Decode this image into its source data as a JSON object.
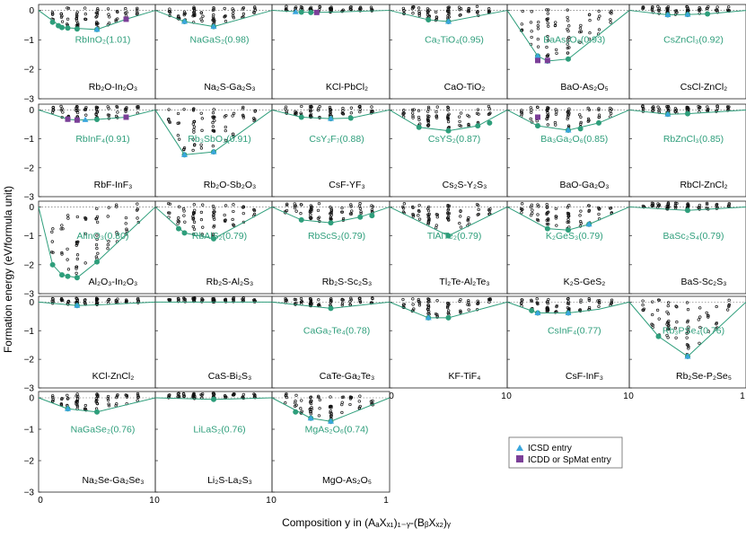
{
  "figure": {
    "ylabel": "Formation energy (eV/formula unit)",
    "xlabel": "Composition y in (AₐXₓ₁)₁₋ᵧ-(BᵦXₓ₂)ᵧ",
    "ytick_labels": [
      "0",
      "−1",
      "−2",
      "−3"
    ],
    "xtick_labels": [
      "0",
      "1"
    ],
    "legend": [
      {
        "label": "ICSD entry",
        "marker": "triangle",
        "color": "#3aa6dd"
      },
      {
        "label": "ICDD or SpMat entry",
        "marker": "square",
        "color": "#7b3f98"
      }
    ],
    "colors": {
      "hull": "#2e9e7b",
      "stable": "#2e9e7b",
      "icsd": "#3aa6dd",
      "icdd": "#7b3f98",
      "points": "#111111"
    }
  },
  "chart_data": [
    {
      "type": "scatter",
      "system": "Rb2O-In2O3",
      "label": "RbInO₂(1.01)",
      "ylim": [
        -3,
        0.2
      ],
      "xlim": [
        0,
        1
      ],
      "hull": [
        [
          0,
          0
        ],
        [
          0.2,
          -0.58
        ],
        [
          0.5,
          -0.65
        ],
        [
          0.75,
          -0.3
        ],
        [
          1,
          0
        ]
      ],
      "stable": [
        [
          0.12,
          -0.4
        ],
        [
          0.17,
          -0.52
        ],
        [
          0.2,
          -0.58
        ],
        [
          0.25,
          -0.6
        ],
        [
          0.33,
          -0.63
        ],
        [
          0.5,
          -0.65
        ]
      ],
      "icsd": [
        [
          0.5,
          -0.65
        ]
      ],
      "icdd": [
        [
          0.75,
          -0.3
        ]
      ]
    },
    {
      "type": "scatter",
      "system": "Na2S-Ga2S3",
      "label": "NaGaS₂(0.98)",
      "ylim": [
        -3,
        0.2
      ],
      "xlim": [
        0,
        1
      ],
      "hull": [
        [
          0,
          0
        ],
        [
          0.25,
          -0.38
        ],
        [
          0.5,
          -0.55
        ],
        [
          1,
          0
        ]
      ],
      "stable": [
        [
          0.25,
          -0.38
        ],
        [
          0.5,
          -0.55
        ]
      ],
      "icsd": [
        [
          0.25,
          -0.38
        ],
        [
          0.5,
          -0.55
        ]
      ],
      "icdd": []
    },
    {
      "type": "scatter",
      "system": "KCl-PbCl2",
      "label": "",
      "ylim": [
        -3,
        0.2
      ],
      "xlim": [
        0,
        1
      ],
      "hull": [
        [
          0,
          0
        ],
        [
          0.33,
          -0.07
        ],
        [
          0.5,
          -0.06
        ],
        [
          1,
          0
        ]
      ],
      "stable": [
        [
          0.25,
          -0.06
        ],
        [
          0.33,
          -0.07
        ]
      ],
      "icsd": [
        [
          0.2,
          -0.05
        ]
      ],
      "icdd": [
        [
          0.38,
          -0.07
        ]
      ]
    },
    {
      "type": "scatter",
      "system": "CaO-TiO2",
      "label": "Ca₂TiO₄(0.95)",
      "ylim": [
        -3,
        0.2
      ],
      "xlim": [
        0,
        1
      ],
      "hull": [
        [
          0,
          0
        ],
        [
          0.33,
          -0.32
        ],
        [
          0.5,
          -0.38
        ],
        [
          1,
          0
        ]
      ],
      "stable": [
        [
          0.33,
          -0.32
        ],
        [
          0.5,
          -0.38
        ]
      ],
      "icsd": [
        [
          0.5,
          -0.38
        ]
      ],
      "icdd": []
    },
    {
      "type": "scatter",
      "system": "BaO-As2O5",
      "label": "BaAs₂O₆(0.93)",
      "ylim": [
        -3,
        0.2
      ],
      "xlim": [
        0,
        1
      ],
      "hull": [
        [
          0,
          0
        ],
        [
          0.25,
          -1.55
        ],
        [
          0.33,
          -1.72
        ],
        [
          0.5,
          -1.65
        ],
        [
          1,
          0
        ]
      ],
      "stable": [
        [
          0.25,
          -1.55
        ],
        [
          0.33,
          -1.72
        ],
        [
          0.5,
          -1.65
        ]
      ],
      "icsd": [
        [
          0.25,
          -1.55
        ],
        [
          0.33,
          -1.72
        ]
      ],
      "icdd": [
        [
          0.25,
          -1.7
        ],
        [
          0.33,
          -1.7
        ]
      ]
    },
    {
      "type": "scatter",
      "system": "CsCl-ZnCl2",
      "label": "CsZnCl₃(0.92)",
      "ylim": [
        -3,
        0.2
      ],
      "xlim": [
        0,
        1
      ],
      "hull": [
        [
          0,
          0
        ],
        [
          0.33,
          -0.15
        ],
        [
          0.5,
          -0.14
        ],
        [
          0.67,
          -0.12
        ],
        [
          1,
          0
        ]
      ],
      "stable": [
        [
          0.33,
          -0.15
        ],
        [
          0.5,
          -0.14
        ],
        [
          0.67,
          -0.12
        ]
      ],
      "icsd": [
        [
          0.33,
          -0.15
        ],
        [
          0.5,
          -0.14
        ]
      ],
      "icdd": []
    },
    {
      "type": "scatter",
      "system": "RbF-InF3",
      "label": "RbInF₄(0.91)",
      "ylim": [
        -3,
        0.2
      ],
      "xlim": [
        0,
        1
      ],
      "hull": [
        [
          0,
          0
        ],
        [
          0.25,
          -0.32
        ],
        [
          0.33,
          -0.35
        ],
        [
          0.5,
          -0.33
        ],
        [
          0.75,
          -0.25
        ],
        [
          1,
          0
        ]
      ],
      "stable": [
        [
          0.25,
          -0.32
        ],
        [
          0.33,
          -0.35
        ],
        [
          0.5,
          -0.33
        ]
      ],
      "icsd": [
        [
          0.4,
          -0.34
        ]
      ],
      "icdd": [
        [
          0.25,
          -0.32
        ],
        [
          0.33,
          -0.35
        ],
        [
          0.75,
          -0.25
        ]
      ]
    },
    {
      "type": "scatter",
      "system": "Rb2O-Sb2O3",
      "label": "Rb₃SbO₃(0.91)",
      "ylim": [
        -3,
        0.2
      ],
      "xlim": [
        0,
        1
      ],
      "hull": [
        [
          0,
          0
        ],
        [
          0.25,
          -1.55
        ],
        [
          0.5,
          -1.45
        ],
        [
          1,
          0
        ]
      ],
      "stable": [
        [
          0.25,
          -1.55
        ],
        [
          0.5,
          -1.45
        ]
      ],
      "icsd": [
        [
          0.25,
          -1.55
        ],
        [
          0.5,
          -1.45
        ]
      ],
      "icdd": []
    },
    {
      "type": "scatter",
      "system": "CsF-YF3",
      "label": "CsY₂F₇(0.88)",
      "ylim": [
        -3,
        0.2
      ],
      "xlim": [
        0,
        1
      ],
      "hull": [
        [
          0,
          0
        ],
        [
          0.25,
          -0.25
        ],
        [
          0.5,
          -0.3
        ],
        [
          0.67,
          -0.28
        ],
        [
          1,
          0
        ]
      ],
      "stable": [
        [
          0.25,
          -0.25
        ],
        [
          0.5,
          -0.3
        ],
        [
          0.67,
          -0.28
        ]
      ],
      "icsd": [
        [
          0.5,
          -0.3
        ]
      ],
      "icdd": []
    },
    {
      "type": "scatter",
      "system": "Cs2S-Y2S3",
      "label": "CsYS₂(0.87)",
      "ylim": [
        -3,
        0.2
      ],
      "xlim": [
        0,
        1
      ],
      "hull": [
        [
          0,
          0
        ],
        [
          0.25,
          -0.6
        ],
        [
          0.5,
          -0.72
        ],
        [
          0.75,
          -0.55
        ],
        [
          1,
          0
        ]
      ],
      "stable": [
        [
          0.25,
          -0.6
        ],
        [
          0.5,
          -0.72
        ],
        [
          0.75,
          -0.55
        ],
        [
          0.85,
          -0.45
        ]
      ],
      "icsd": [],
      "icdd": []
    },
    {
      "type": "scatter",
      "system": "BaO-Ga2O3",
      "label": "Ba₃Ga₂O₆(0.85)",
      "ylim": [
        -3,
        0.2
      ],
      "xlim": [
        0,
        1
      ],
      "hull": [
        [
          0,
          0
        ],
        [
          0.25,
          -0.55
        ],
        [
          0.5,
          -0.7
        ],
        [
          0.75,
          -0.45
        ],
        [
          1,
          0
        ]
      ],
      "stable": [
        [
          0.25,
          -0.55
        ],
        [
          0.5,
          -0.7
        ],
        [
          0.6,
          -0.65
        ],
        [
          0.75,
          -0.45
        ]
      ],
      "icsd": [
        [
          0.5,
          -0.7
        ]
      ],
      "icdd": [
        [
          0.25,
          -0.25
        ]
      ]
    },
    {
      "type": "scatter",
      "system": "RbCl-ZnCl2",
      "label": "RbZnCl₃(0.85)",
      "ylim": [
        -3,
        0.2
      ],
      "xlim": [
        0,
        1
      ],
      "hull": [
        [
          0,
          0
        ],
        [
          0.33,
          -0.15
        ],
        [
          0.5,
          -0.13
        ],
        [
          1,
          0
        ]
      ],
      "stable": [
        [
          0.33,
          -0.15
        ],
        [
          0.5,
          -0.13
        ]
      ],
      "icsd": [
        [
          0.33,
          -0.15
        ]
      ],
      "icdd": []
    },
    {
      "type": "scatter",
      "system": "Al2O3-In2O3",
      "label": "AlInO₃(0.80)",
      "ylim": [
        -3,
        0.2
      ],
      "xlim": [
        0,
        1
      ],
      "hull": [
        [
          0,
          0
        ],
        [
          0.12,
          -2.0
        ],
        [
          0.2,
          -2.35
        ],
        [
          0.33,
          -2.45
        ],
        [
          0.5,
          -1.9
        ],
        [
          1,
          0
        ]
      ],
      "stable": [
        [
          0.12,
          -2.0
        ],
        [
          0.2,
          -2.35
        ],
        [
          0.25,
          -2.4
        ],
        [
          0.33,
          -2.45
        ],
        [
          0.5,
          -1.9
        ]
      ],
      "icsd": [],
      "icdd": []
    },
    {
      "type": "scatter",
      "system": "Rb2S-Al2S3",
      "label": "RbAlS₂(0.79)",
      "ylim": [
        -3,
        0.2
      ],
      "xlim": [
        0,
        1
      ],
      "hull": [
        [
          0,
          0
        ],
        [
          0.25,
          -0.9
        ],
        [
          0.5,
          -1.1
        ],
        [
          1,
          0
        ]
      ],
      "stable": [
        [
          0.2,
          -0.75
        ],
        [
          0.25,
          -0.9
        ],
        [
          0.5,
          -1.1
        ]
      ],
      "icsd": [],
      "icdd": []
    },
    {
      "type": "scatter",
      "system": "Rb2S-Sc2S3",
      "label": "RbScS₂(0.79)",
      "ylim": [
        -3,
        0.2
      ],
      "xlim": [
        0,
        1
      ],
      "hull": [
        [
          0,
          0
        ],
        [
          0.25,
          -0.45
        ],
        [
          0.5,
          -0.55
        ],
        [
          0.75,
          -0.35
        ],
        [
          1,
          0
        ]
      ],
      "stable": [
        [
          0.25,
          -0.45
        ],
        [
          0.5,
          -0.55
        ],
        [
          0.75,
          -0.35
        ],
        [
          0.85,
          -0.3
        ]
      ],
      "icsd": [],
      "icdd": []
    },
    {
      "type": "scatter",
      "system": "Tl2Te-Al2Te3",
      "label": "TlAlTe₂(0.79)",
      "ylim": [
        -3,
        0.2
      ],
      "xlim": [
        0,
        1
      ],
      "hull": [
        [
          0,
          0
        ],
        [
          0.5,
          -1.0
        ],
        [
          1,
          0
        ]
      ],
      "stable": [
        [
          0.5,
          -1.0
        ]
      ],
      "icsd": [],
      "icdd": []
    },
    {
      "type": "scatter",
      "system": "K2S-GeS2",
      "label": "K₂GeS₃(0.79)",
      "ylim": [
        -3,
        0.2
      ],
      "xlim": [
        0,
        1
      ],
      "hull": [
        [
          0,
          0
        ],
        [
          0.33,
          -0.75
        ],
        [
          0.5,
          -0.8
        ],
        [
          0.67,
          -0.6
        ],
        [
          1,
          0
        ]
      ],
      "stable": [
        [
          0.33,
          -0.75
        ],
        [
          0.5,
          -0.8
        ],
        [
          0.67,
          -0.6
        ]
      ],
      "icsd": [
        [
          0.67,
          -0.6
        ]
      ],
      "icdd": []
    },
    {
      "type": "scatter",
      "system": "BaS-Sc2S3",
      "label": "BaSc₂S₄(0.79)",
      "ylim": [
        -3,
        0.2
      ],
      "xlim": [
        0,
        1
      ],
      "hull": [
        [
          0,
          0
        ],
        [
          0.5,
          -0.12
        ],
        [
          1,
          0
        ]
      ],
      "stable": [
        [
          0.5,
          -0.12
        ]
      ],
      "icsd": [],
      "icdd": []
    },
    {
      "type": "scatter",
      "system": "KCl-ZnCl2",
      "label": "",
      "ylim": [
        -3,
        0.2
      ],
      "xlim": [
        0,
        1
      ],
      "hull": [
        [
          0,
          0
        ],
        [
          0.33,
          -0.12
        ],
        [
          0.5,
          -0.1
        ],
        [
          1,
          0
        ]
      ],
      "stable": [
        [
          0.33,
          -0.12
        ]
      ],
      "icsd": [
        [
          0.33,
          -0.12
        ]
      ],
      "icdd": []
    },
    {
      "type": "scatter",
      "system": "CaS-Bi2S3",
      "label": "",
      "ylim": [
        -3,
        0.2
      ],
      "xlim": [
        0,
        1
      ],
      "hull": [
        [
          0,
          0
        ],
        [
          1,
          0
        ]
      ],
      "stable": [],
      "icsd": [],
      "icdd": []
    },
    {
      "type": "scatter",
      "system": "CaTe-Ga2Te3",
      "label": "CaGa₂Te₄(0.78)",
      "ylim": [
        -3,
        0.2
      ],
      "xlim": [
        0,
        1
      ],
      "hull": [
        [
          0,
          0
        ],
        [
          0.5,
          -0.22
        ],
        [
          1,
          0
        ]
      ],
      "stable": [
        [
          0.5,
          -0.22
        ]
      ],
      "icsd": [],
      "icdd": []
    },
    {
      "type": "scatter",
      "system": "KF-TiF4",
      "label": "",
      "ylim": [
        -3,
        0.2
      ],
      "xlim": [
        0,
        1
      ],
      "hull": [
        [
          0,
          0
        ],
        [
          0.33,
          -0.55
        ],
        [
          0.5,
          -0.55
        ],
        [
          1,
          0
        ]
      ],
      "stable": [
        [
          0.33,
          -0.55
        ],
        [
          0.5,
          -0.55
        ]
      ],
      "icsd": [
        [
          0.33,
          -0.55
        ]
      ],
      "icdd": []
    },
    {
      "type": "scatter",
      "system": "CsF-InF3",
      "label": "CsInF₄(0.77)",
      "ylim": [
        -3,
        0.2
      ],
      "xlim": [
        0,
        1
      ],
      "hull": [
        [
          0,
          0
        ],
        [
          0.25,
          -0.38
        ],
        [
          0.5,
          -0.38
        ],
        [
          0.75,
          -0.25
        ],
        [
          1,
          0
        ]
      ],
      "stable": [
        [
          0.2,
          -0.3
        ],
        [
          0.25,
          -0.38
        ],
        [
          0.5,
          -0.38
        ]
      ],
      "icsd": [
        [
          0.25,
          -0.38
        ],
        [
          0.5,
          -0.38
        ]
      ],
      "icdd": []
    },
    {
      "type": "scatter",
      "system": "Rb2Se-P2Se5",
      "label": "Rb₃PSe₄(0.76)",
      "ylim": [
        -3,
        0.2
      ],
      "xlim": [
        0,
        1
      ],
      "hull": [
        [
          0,
          0
        ],
        [
          0.25,
          -1.2
        ],
        [
          0.5,
          -1.9
        ],
        [
          1,
          0
        ]
      ],
      "stable": [
        [
          0.25,
          -1.2
        ],
        [
          0.5,
          -1.9
        ]
      ],
      "icsd": [
        [
          0.5,
          -1.9
        ]
      ],
      "icdd": []
    },
    {
      "type": "scatter",
      "system": "Na2Se-Ga2Se3",
      "label": "NaGaSe₂(0.76)",
      "ylim": [
        -3,
        0.2
      ],
      "xlim": [
        0,
        1
      ],
      "hull": [
        [
          0,
          0
        ],
        [
          0.25,
          -0.35
        ],
        [
          0.5,
          -0.45
        ],
        [
          1,
          0
        ]
      ],
      "stable": [
        [
          0.25,
          -0.35
        ],
        [
          0.5,
          -0.45
        ]
      ],
      "icsd": [
        [
          0.25,
          -0.35
        ]
      ],
      "icdd": []
    },
    {
      "type": "scatter",
      "system": "Li2S-La2S3",
      "label": "LiLaS₂(0.76)",
      "ylim": [
        -3,
        0.2
      ],
      "xlim": [
        0,
        1
      ],
      "hull": [
        [
          0,
          0
        ],
        [
          0.5,
          -0.05
        ],
        [
          1,
          0
        ]
      ],
      "stable": [
        [
          0.5,
          -0.05
        ]
      ],
      "icsd": [],
      "icdd": []
    },
    {
      "type": "scatter",
      "system": "MgO-As2O5",
      "label": "MgAs₂O₆(0.74)",
      "ylim": [
        -3,
        0.2
      ],
      "xlim": [
        0,
        1
      ],
      "hull": [
        [
          0,
          0
        ],
        [
          0.33,
          -0.65
        ],
        [
          0.5,
          -0.75
        ],
        [
          1,
          0
        ]
      ],
      "stable": [
        [
          0.2,
          -0.45
        ],
        [
          0.33,
          -0.65
        ],
        [
          0.5,
          -0.75
        ]
      ],
      "icsd": [
        [
          0.33,
          -0.65
        ],
        [
          0.5,
          -0.75
        ]
      ],
      "icdd": []
    }
  ]
}
